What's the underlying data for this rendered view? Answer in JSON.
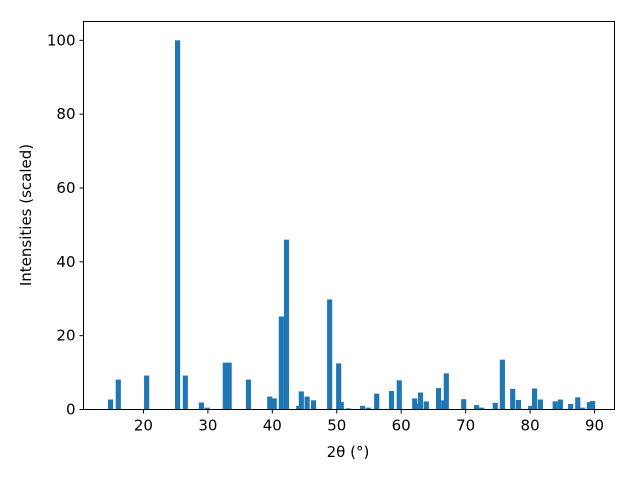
{
  "chart_data": {
    "type": "bar",
    "xlabel": "2θ (°)",
    "ylabel": "Intensities (scaled)",
    "color": "#1f77b4",
    "x": [
      14.9,
      16.1,
      20.5,
      25.3,
      26.5,
      29.0,
      29.9,
      32.7,
      33.3,
      36.3,
      39.6,
      40.3,
      41.4,
      42.2,
      44.1,
      44.5,
      45.4,
      46.4,
      48.9,
      50.3,
      50.7,
      51.8,
      54.0,
      54.9,
      56.2,
      58.5,
      59.7,
      62.1,
      62.5,
      63.0,
      63.9,
      65.8,
      66.6,
      67.0,
      69.7,
      71.7,
      72.5,
      74.6,
      75.7,
      77.3,
      78.2,
      80.1,
      80.7,
      81.6,
      83.9,
      84.7,
      86.3,
      87.4,
      88.1,
      89.2,
      89.7
    ],
    "values": [
      2.7,
      8.1,
      9.2,
      100,
      9.2,
      1.9,
      0.5,
      12.7,
      12.7,
      8.1,
      3.5,
      3.0,
      25.2,
      46,
      1.0,
      4.9,
      3.5,
      2.5,
      29.8,
      12.5,
      2.0,
      0.3,
      1.0,
      0.5,
      4.3,
      5.0,
      7.9,
      3.0,
      1.5,
      4.6,
      2.2,
      5.8,
      2.5,
      9.8,
      2.8,
      1.2,
      0.5,
      1.8,
      13.5,
      5.6,
      2.6,
      1.0,
      5.7,
      2.7,
      2.2,
      2.7,
      1.5,
      3.3,
      0.5,
      2.0,
      2.3
    ],
    "xlim": [
      10.7,
      93.1
    ],
    "xticks": [
      20,
      30,
      40,
      50,
      60,
      70,
      80,
      90
    ],
    "ylim": [
      0,
      105.1
    ],
    "yticks": [
      0,
      20,
      40,
      60,
      80,
      100
    ],
    "grid": false
  }
}
